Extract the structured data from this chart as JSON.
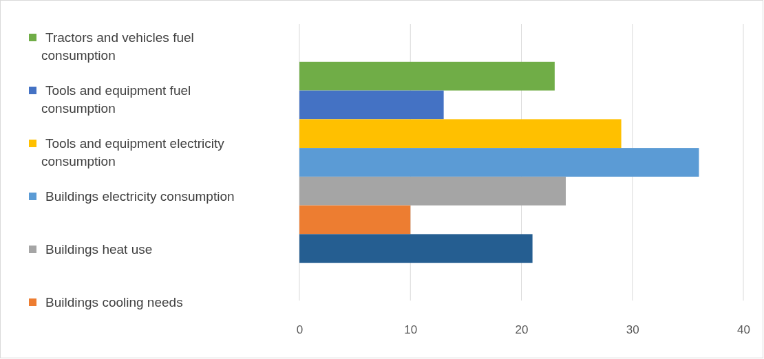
{
  "chart_data": {
    "type": "bar",
    "orientation": "horizontal",
    "categories": [
      null
    ],
    "series": [
      {
        "name": "Tractors and vehicles fuel consumption",
        "color": "#70ad47",
        "values": [
          23
        ]
      },
      {
        "name": "Tools and equipment fuel consumption",
        "color": "#4472c4",
        "values": [
          13
        ]
      },
      {
        "name": "Tools and equipment electricity consumption",
        "color": "#ffc000",
        "values": [
          29
        ]
      },
      {
        "name": "Buildings electricity consumption",
        "color": "#5b9bd5",
        "values": [
          36
        ]
      },
      {
        "name": "Buildings heat use",
        "color": "#a5a5a5",
        "values": [
          24
        ]
      },
      {
        "name": "Buildings cooling needs",
        "color": "#ed7d31",
        "values": [
          10
        ]
      },
      {
        "color": "#255e91",
        "values": [
          21
        ]
      }
    ],
    "xlim": [
      0,
      40
    ],
    "xticks": [
      0,
      10,
      20,
      30,
      40
    ],
    "grid": "x",
    "legend": "left"
  }
}
